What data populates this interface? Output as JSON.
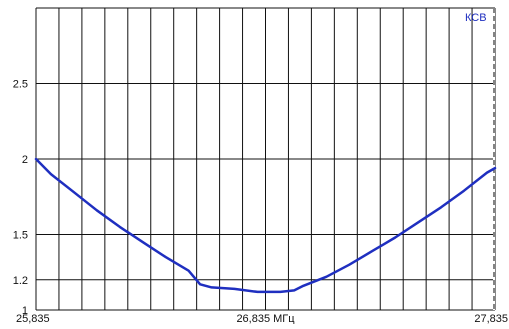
{
  "chart_data": {
    "type": "line",
    "series": [
      {
        "name": "КСВ",
        "color": "#1f2fc0",
        "points": [
          [
            25.835,
            2.0
          ],
          [
            25.9,
            1.9
          ],
          [
            26.0,
            1.78
          ],
          [
            26.1,
            1.66
          ],
          [
            26.2,
            1.55
          ],
          [
            26.3,
            1.45
          ],
          [
            26.4,
            1.35
          ],
          [
            26.5,
            1.26
          ],
          [
            26.55,
            1.17
          ],
          [
            26.6,
            1.15
          ],
          [
            26.7,
            1.14
          ],
          [
            26.8,
            1.12
          ],
          [
            26.9,
            1.12
          ],
          [
            26.96,
            1.13
          ],
          [
            27.0,
            1.16
          ],
          [
            27.1,
            1.22
          ],
          [
            27.2,
            1.3
          ],
          [
            27.3,
            1.39
          ],
          [
            27.4,
            1.48
          ],
          [
            27.5,
            1.58
          ],
          [
            27.6,
            1.68
          ],
          [
            27.7,
            1.79
          ],
          [
            27.8,
            1.91
          ],
          [
            27.835,
            1.94
          ]
        ]
      }
    ],
    "xlim": [
      25.835,
      27.835
    ],
    "ylim": [
      1,
      3.0
    ],
    "x_tick_labels": [
      "25,835",
      "26,835 МГц",
      "27,835"
    ],
    "y_ticks": [
      {
        "value": 1,
        "label": "1"
      },
      {
        "value": 1.2,
        "label": "1.2"
      },
      {
        "value": 1.5,
        "label": "1.5"
      },
      {
        "value": 2,
        "label": "2"
      },
      {
        "value": 2.5,
        "label": "2.5"
      }
    ],
    "grid": true,
    "legend_position": "top-right"
  },
  "colors": {
    "line": "#1f2fc0",
    "grid": "#111111",
    "cursor": "#333333"
  }
}
